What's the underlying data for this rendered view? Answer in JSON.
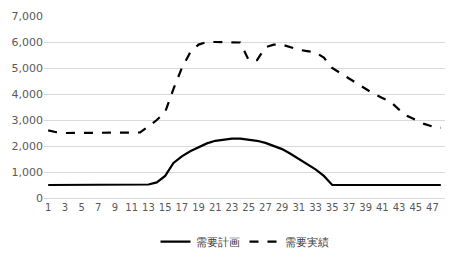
{
  "chart_data": {
    "type": "line",
    "x": [
      1,
      2,
      3,
      4,
      5,
      6,
      7,
      8,
      9,
      10,
      11,
      12,
      13,
      14,
      15,
      16,
      17,
      18,
      19,
      20,
      21,
      22,
      23,
      24,
      25,
      26,
      27,
      28,
      29,
      30,
      31,
      32,
      33,
      34,
      35,
      36,
      37,
      38,
      39,
      40,
      41,
      42,
      43,
      44,
      45,
      46,
      47,
      48
    ],
    "xlim": [
      0.5,
      48.5
    ],
    "xticks": [
      1,
      3,
      5,
      7,
      9,
      11,
      13,
      15,
      17,
      19,
      21,
      23,
      25,
      27,
      29,
      31,
      33,
      35,
      37,
      39,
      41,
      43,
      45,
      47
    ],
    "ylim": [
      0,
      7000
    ],
    "yticks": [
      0,
      {
        "value": 1000,
        "label": "1,000"
      },
      {
        "value": 2000,
        "label": "2,000"
      },
      {
        "value": 3000,
        "label": "3,000"
      },
      {
        "value": 4000,
        "label": "4,000"
      },
      {
        "value": 5000,
        "label": "5,000"
      },
      {
        "value": 6000,
        "label": "6,000"
      },
      {
        "value": 7000,
        "label": "7,000"
      }
    ],
    "grid": true,
    "legend": "bottom",
    "series": [
      {
        "name": "需要計画",
        "color": "#000000",
        "line_style": "solid",
        "values": [
          500,
          500,
          500,
          500,
          500,
          500,
          500,
          500,
          500,
          500,
          500,
          500,
          520,
          600,
          850,
          1350,
          1600,
          1800,
          1950,
          2100,
          2200,
          2250,
          2280,
          2280,
          2250,
          2200,
          2120,
          2000,
          1880,
          1700,
          1500,
          1300,
          1100,
          850,
          500,
          500,
          500,
          500,
          500,
          500,
          500,
          500,
          500,
          500,
          500,
          500,
          500,
          500
        ]
      },
      {
        "name": "需要実績",
        "color": "#000000",
        "line_style": "dash",
        "values": [
          2600,
          2530,
          2500,
          2500,
          2500,
          2500,
          2500,
          2500,
          2500,
          2500,
          2500,
          2520,
          2750,
          3000,
          3300,
          4200,
          5000,
          5600,
          5900,
          6000,
          6000,
          6000,
          6000,
          5980,
          5300,
          5300,
          5800,
          5900,
          5900,
          5800,
          5700,
          5650,
          5600,
          5400,
          5000,
          4800,
          4600,
          4400,
          4200,
          4000,
          3850,
          3700,
          3400,
          3150,
          3000,
          2850,
          2750,
          2700
        ]
      }
    ]
  }
}
